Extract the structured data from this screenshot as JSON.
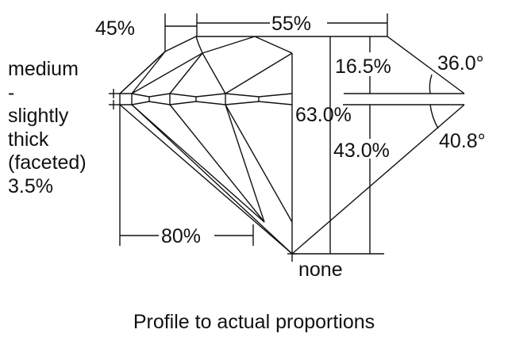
{
  "labels": {
    "lower_half_length": "45%",
    "table": "55%",
    "girdle": [
      "medium",
      "-",
      "slightly",
      "thick",
      "(faceted)",
      "3.5%"
    ],
    "crown_height": "16.5%",
    "crown_angle": "36.0°",
    "total_depth": "63.0%",
    "pavilion_depth": "43.0%",
    "pavilion_angle": "40.8°",
    "star_length": "80%",
    "culet": "none"
  },
  "caption": "Profile to actual proportions",
  "colors": {
    "line": "#111111",
    "background": "#ffffff"
  }
}
